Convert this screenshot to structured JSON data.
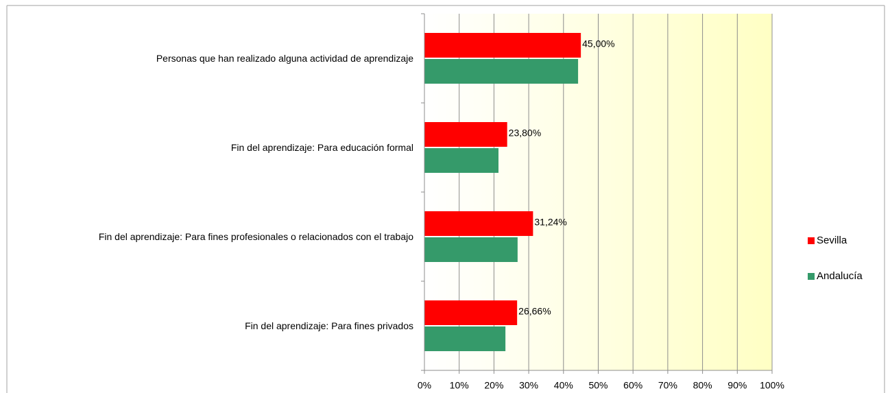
{
  "chart_data": {
    "type": "hbar",
    "categories": [
      "Personas que han realizado alguna actividad de aprendizaje",
      "Fin del aprendizaje: Para educación formal",
      "Fin del aprendizaje: Para fines profesionales o relacionados con el trabajo",
      "Fin del aprendizaje: Para fines privados"
    ],
    "series": [
      {
        "name": "Sevilla",
        "color": "#ff0000",
        "values": [
          45.0,
          23.8,
          31.24,
          26.66
        ],
        "value_labels": [
          "45,00%",
          "23,80%",
          "31,24%",
          "26,66%"
        ]
      },
      {
        "name": "Andalucía",
        "color": "#359a6a",
        "values": [
          44.2,
          21.3,
          26.8,
          23.3
        ]
      }
    ],
    "xlim": [
      0,
      100
    ],
    "xticks": [
      {
        "value": 0,
        "label": "0%"
      },
      {
        "value": 10,
        "label": "10%"
      },
      {
        "value": 20,
        "label": "20%"
      },
      {
        "value": 30,
        "label": "30%"
      },
      {
        "value": 40,
        "label": "40%"
      },
      {
        "value": 50,
        "label": "50%"
      },
      {
        "value": 60,
        "label": "60%"
      },
      {
        "value": 70,
        "label": "70%"
      },
      {
        "value": 80,
        "label": "80%"
      },
      {
        "value": 90,
        "label": "90%"
      },
      {
        "value": 100,
        "label": "100%"
      }
    ],
    "grid": true,
    "legend": "right"
  }
}
